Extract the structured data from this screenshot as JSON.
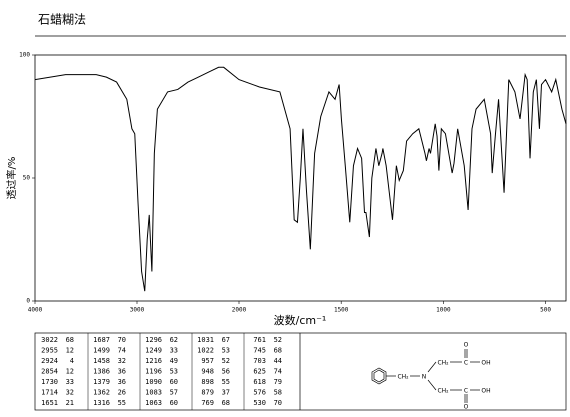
{
  "chart_data": {
    "type": "line",
    "title": "石蜡糊法",
    "xlabel": "波数/cm⁻¹",
    "ylabel": "透过率/%",
    "xlim": [
      4000,
      400
    ],
    "xbreak": 2000,
    "xticks": [
      4000,
      3000,
      2000,
      1500,
      1000,
      500
    ],
    "ylim": [
      0,
      100
    ],
    "yticks": [
      0,
      50,
      100
    ],
    "color": "#000000",
    "x": [
      4000,
      3700,
      3400,
      3300,
      3200,
      3100,
      3050,
      3022,
      2990,
      2955,
      2924,
      2900,
      2880,
      2854,
      2830,
      2800,
      2700,
      2600,
      2500,
      2400,
      2300,
      2200,
      2150,
      2000,
      1900,
      1800,
      1750,
      1730,
      1714,
      1700,
      1687,
      1670,
      1651,
      1630,
      1600,
      1560,
      1530,
      1510,
      1499,
      1480,
      1458,
      1440,
      1420,
      1400,
      1386,
      1379,
      1362,
      1350,
      1330,
      1316,
      1300,
      1296,
      1280,
      1249,
      1230,
      1216,
      1196,
      1180,
      1150,
      1120,
      1090,
      1083,
      1070,
      1063,
      1040,
      1031,
      1022,
      1010,
      990,
      957,
      948,
      930,
      898,
      879,
      860,
      840,
      800,
      769,
      761,
      745,
      730,
      703,
      680,
      650,
      625,
      618,
      600,
      590,
      576,
      560,
      545,
      530,
      520,
      500,
      470,
      450,
      420,
      400
    ],
    "values": [
      90,
      92,
      92,
      91,
      89,
      82,
      70,
      68,
      40,
      12,
      4,
      25,
      35,
      12,
      60,
      78,
      85,
      86,
      89,
      91,
      93,
      95,
      95,
      90,
      87,
      85,
      70,
      33,
      32,
      50,
      70,
      45,
      21,
      60,
      75,
      85,
      82,
      88,
      74,
      55,
      32,
      55,
      62,
      58,
      36,
      36,
      26,
      50,
      62,
      55,
      60,
      62,
      55,
      33,
      55,
      49,
      53,
      65,
      68,
      70,
      60,
      57,
      62,
      60,
      72,
      67,
      53,
      70,
      68,
      52,
      56,
      70,
      55,
      37,
      70,
      78,
      82,
      68,
      52,
      68,
      82,
      44,
      90,
      85,
      74,
      79,
      92,
      90,
      58,
      85,
      90,
      70,
      88,
      90,
      85,
      90,
      78,
      72
    ]
  },
  "peaks": [
    [
      3022,
      68
    ],
    [
      2955,
      12
    ],
    [
      2924,
      4
    ],
    [
      2854,
      12
    ],
    [
      1730,
      33
    ],
    [
      1714,
      32
    ],
    [
      1651,
      21
    ],
    [
      1687,
      70
    ],
    [
      1499,
      74
    ],
    [
      1458,
      32
    ],
    [
      1386,
      36
    ],
    [
      1379,
      36
    ],
    [
      1362,
      26
    ],
    [
      1316,
      55
    ],
    [
      1296,
      62
    ],
    [
      1249,
      33
    ],
    [
      1216,
      49
    ],
    [
      1196,
      53
    ],
    [
      1090,
      60
    ],
    [
      1083,
      57
    ],
    [
      1063,
      60
    ],
    [
      1031,
      67
    ],
    [
      1022,
      53
    ],
    [
      957,
      52
    ],
    [
      948,
      56
    ],
    [
      898,
      55
    ],
    [
      879,
      37
    ],
    [
      769,
      68
    ],
    [
      761,
      52
    ],
    [
      745,
      68
    ],
    [
      703,
      44
    ],
    [
      625,
      74
    ],
    [
      618,
      79
    ],
    [
      576,
      58
    ],
    [
      530,
      70
    ]
  ],
  "structure": {
    "labels": [
      "CH₂",
      "N",
      "CH₂",
      "C",
      "OH",
      "O",
      "CH₂",
      "C",
      "OH",
      "O"
    ]
  }
}
